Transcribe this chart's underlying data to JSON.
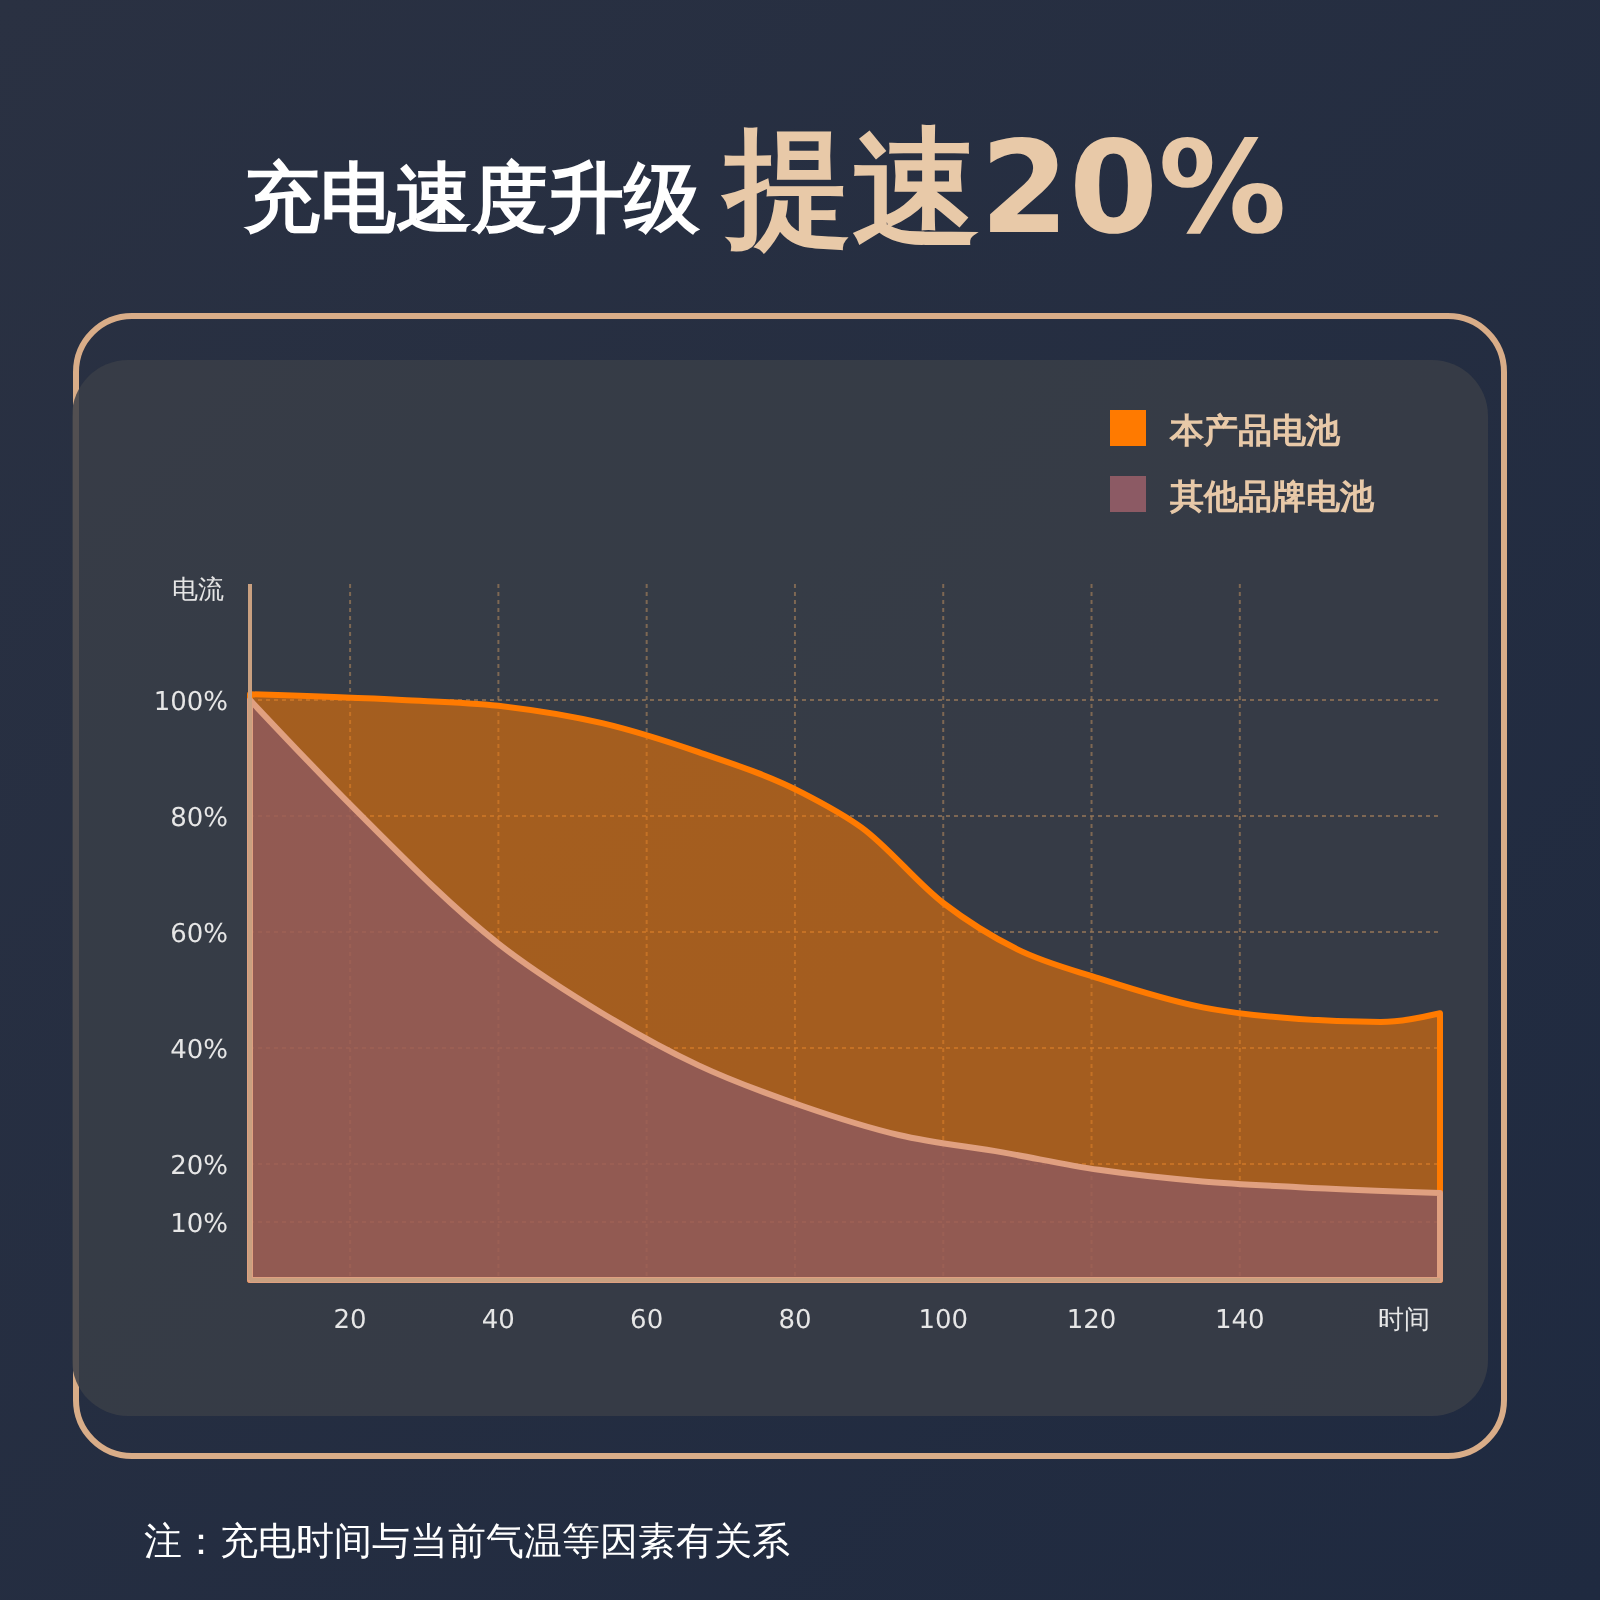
{
  "chart_data": {
    "type": "area",
    "title": "充电速度升级",
    "subtitle": "提速20%",
    "xlabel": "时间",
    "ylabel": "电流",
    "xlim": [
      6.5,
      167
    ],
    "xticks": [
      20,
      40,
      60,
      80,
      100,
      120,
      140
    ],
    "ylim": [
      0,
      120
    ],
    "yticks": [
      {
        "value": 10,
        "label": "10%"
      },
      {
        "value": 20,
        "label": "20%"
      },
      {
        "value": 40,
        "label": "40%"
      },
      {
        "value": 60,
        "label": "60%"
      },
      {
        "value": 80,
        "label": "80%"
      },
      {
        "value": 100,
        "label": "100%"
      }
    ],
    "grid": true,
    "legend": "top right",
    "series": [
      {
        "name": "本产品电池",
        "color": "#ff7a00",
        "x": [
          6.5,
          27,
          40,
          54,
          67,
          81,
          89,
          100,
          110,
          121,
          135,
          148,
          159,
          167
        ],
        "values": [
          101,
          100,
          99,
          96,
          91,
          84,
          78,
          65,
          57,
          52,
          47,
          45,
          44.5,
          46
        ]
      },
      {
        "name": "其他品牌电池",
        "color": "#8c5a64",
        "x": [
          6.5,
          20,
          40,
          54,
          67,
          81,
          94,
          108,
          121,
          135,
          148,
          167
        ],
        "values": [
          100,
          82,
          58,
          46,
          37,
          30,
          25,
          22,
          19,
          17,
          16,
          15
        ]
      }
    ],
    "annotations": [
      "注：充电时间与当前气温等因素有关系"
    ]
  }
}
